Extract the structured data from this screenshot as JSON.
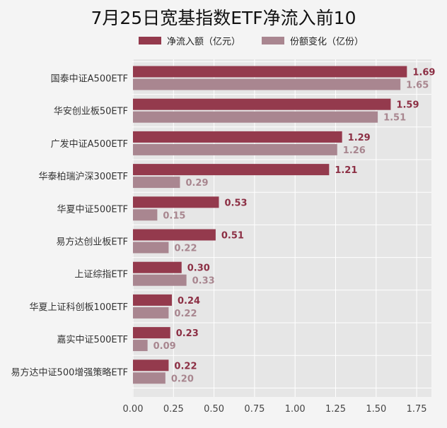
{
  "chart_data": {
    "type": "bar",
    "orientation": "horizontal",
    "title": "7月25日宽基指数ETF净流入前10",
    "categories": [
      "国泰中证A500ETF",
      "华安创业板50ETF",
      "广发中证A500ETF",
      "华泰柏瑞沪深300ETF",
      "华夏中证500ETF",
      "易方达创业板ETF",
      "上证综指ETF",
      "华夏上证科创板100ETF",
      "嘉实中证500ETF",
      "易方达中证500增强策略ETF"
    ],
    "series": [
      {
        "name": "净流入额（亿元）",
        "color": "#943a4d",
        "values": [
          1.69,
          1.59,
          1.29,
          1.21,
          0.53,
          0.51,
          0.3,
          0.24,
          0.23,
          0.22
        ],
        "labels": [
          "1.69",
          "1.59",
          "1.29",
          "1.21",
          "0.53",
          "0.51",
          "0.30",
          "0.24",
          "0.23",
          "0.22"
        ]
      },
      {
        "name": "份额变化（亿份）",
        "color": "#a98690",
        "values": [
          1.65,
          1.51,
          1.26,
          0.29,
          0.15,
          0.22,
          0.33,
          0.22,
          0.09,
          0.2
        ],
        "labels": [
          "1.65",
          "1.51",
          "1.26",
          "0.29",
          "0.15",
          "0.22",
          "0.33",
          "0.22",
          "0.09",
          "0.20"
        ]
      }
    ],
    "xlim": [
      0,
      1.9
    ],
    "xticks": [
      "0.00",
      "0.25",
      "0.50",
      "0.75",
      "1.00",
      "1.25",
      "1.50",
      "1.75"
    ],
    "xlabel": "",
    "ylabel": "",
    "grid": true,
    "legend_position": "top"
  }
}
